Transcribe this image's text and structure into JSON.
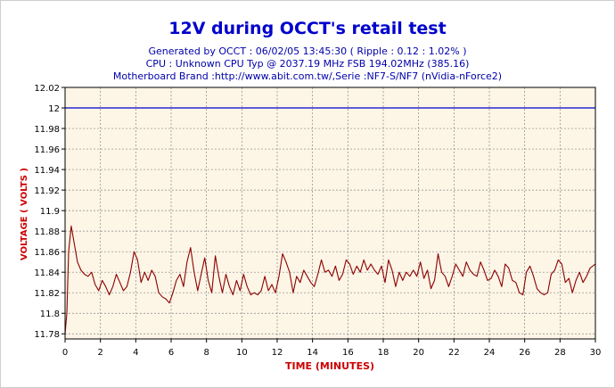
{
  "chart_data": {
    "type": "line",
    "title": "12V during OCCT's retail test",
    "subtitle_lines": [
      "Generated by OCCT : 06/02/05 13:45:30 ( Ripple : 0.12 : 1.02% )",
      "CPU : Unknown CPU Typ @ 2037.19 MHz FSB 194.02MHz (385.16)",
      "Motherboard Brand :http://www.abit.com.tw/,Serie :NF7-S/NF7 (nVidia-nForce2)"
    ],
    "xlabel": "TIME (MINUTES)",
    "ylabel": "VOLTAGE ( VOLTS )",
    "xlim": [
      0,
      30
    ],
    "ylim": [
      11.775,
      12.02
    ],
    "x_ticks": [
      0,
      2,
      4,
      6,
      8,
      10,
      12,
      14,
      16,
      18,
      20,
      22,
      24,
      26,
      28,
      30
    ],
    "y_ticks": [
      "11.78",
      "11.8",
      "11.82",
      "11.84",
      "11.86",
      "11.88",
      "11.9",
      "11.92",
      "11.94",
      "11.96",
      "11.98",
      "12",
      "12.02"
    ],
    "grid": true,
    "series": [
      {
        "color": "#8b0000",
        "x": [
          0,
          0.1,
          0.2,
          0.35,
          0.5,
          0.7,
          0.9,
          1.1,
          1.3,
          1.5,
          1.7,
          1.9,
          2.1,
          2.3,
          2.5,
          2.7,
          2.9,
          3.1,
          3.3,
          3.5,
          3.7,
          3.9,
          4.1,
          4.3,
          4.5,
          4.7,
          4.9,
          5.1,
          5.3,
          5.5,
          5.7,
          5.9,
          6.1,
          6.3,
          6.5,
          6.7,
          6.9,
          7.1,
          7.3,
          7.5,
          7.7,
          7.9,
          8.1,
          8.3,
          8.5,
          8.7,
          8.9,
          9.1,
          9.3,
          9.5,
          9.7,
          9.9,
          10.1,
          10.3,
          10.5,
          10.7,
          10.9,
          11.1,
          11.3,
          11.5,
          11.7,
          11.9,
          12.1,
          12.3,
          12.5,
          12.7,
          12.9,
          13.1,
          13.3,
          13.5,
          13.7,
          13.9,
          14.1,
          14.3,
          14.5,
          14.7,
          14.9,
          15.1,
          15.3,
          15.5,
          15.7,
          15.9,
          16.1,
          16.3,
          16.5,
          16.7,
          16.9,
          17.1,
          17.3,
          17.5,
          17.7,
          17.9,
          18.1,
          18.3,
          18.5,
          18.7,
          18.9,
          19.1,
          19.3,
          19.5,
          19.7,
          19.9,
          20.1,
          20.3,
          20.5,
          20.7,
          20.9,
          21.1,
          21.3,
          21.5,
          21.7,
          21.9,
          22.1,
          22.3,
          22.5,
          22.7,
          22.9,
          23.1,
          23.3,
          23.5,
          23.7,
          23.9,
          24.1,
          24.3,
          24.5,
          24.7,
          24.9,
          25.1,
          25.3,
          25.5,
          25.7,
          25.9,
          26.1,
          26.3,
          26.5,
          26.7,
          26.9,
          27.1,
          27.3,
          27.5,
          27.7,
          27.9,
          28.1,
          28.3,
          28.5,
          28.7,
          28.9,
          29.1,
          29.3,
          29.5,
          29.7,
          30
        ],
        "values": [
          11.78,
          11.8,
          11.86,
          11.885,
          11.87,
          11.85,
          11.842,
          11.838,
          11.836,
          11.84,
          11.828,
          11.822,
          11.832,
          11.826,
          11.818,
          11.826,
          11.838,
          11.83,
          11.822,
          11.826,
          11.84,
          11.86,
          11.852,
          11.83,
          11.84,
          11.832,
          11.842,
          11.836,
          11.82,
          11.816,
          11.814,
          11.81,
          11.82,
          11.832,
          11.838,
          11.826,
          11.85,
          11.864,
          11.84,
          11.822,
          11.838,
          11.854,
          11.832,
          11.82,
          11.856,
          11.836,
          11.82,
          11.838,
          11.826,
          11.818,
          11.832,
          11.822,
          11.838,
          11.826,
          11.818,
          11.82,
          11.818,
          11.822,
          11.836,
          11.822,
          11.828,
          11.82,
          11.836,
          11.858,
          11.85,
          11.84,
          11.82,
          11.836,
          11.83,
          11.842,
          11.836,
          11.83,
          11.826,
          11.838,
          11.852,
          11.84,
          11.842,
          11.836,
          11.846,
          11.832,
          11.838,
          11.852,
          11.848,
          11.838,
          11.846,
          11.84,
          11.852,
          11.842,
          11.848,
          11.842,
          11.838,
          11.846,
          11.83,
          11.852,
          11.842,
          11.826,
          11.84,
          11.832,
          11.84,
          11.836,
          11.842,
          11.836,
          11.85,
          11.834,
          11.842,
          11.824,
          11.832,
          11.858,
          11.84,
          11.836,
          11.826,
          11.836,
          11.848,
          11.842,
          11.836,
          11.85,
          11.842,
          11.838,
          11.836,
          11.85,
          11.842,
          11.832,
          11.834,
          11.842,
          11.836,
          11.826,
          11.848,
          11.844,
          11.832,
          11.83,
          11.82,
          11.818,
          11.84,
          11.846,
          11.836,
          11.824,
          11.82,
          11.818,
          11.82,
          11.838,
          11.842,
          11.852,
          11.848,
          11.83,
          11.834,
          11.82,
          11.832,
          11.84,
          11.83,
          11.836,
          11.844,
          11.848
        ]
      },
      {
        "color": "#0000cc",
        "x": [
          0,
          30
        ],
        "values": [
          12.0,
          12.0
        ]
      }
    ]
  },
  "colors": {
    "title": "#0000cc",
    "subtitle": "#0000aa",
    "axis_label": "#cc0000",
    "plot_bg": "#fdf5e6",
    "grid": "#888888"
  }
}
